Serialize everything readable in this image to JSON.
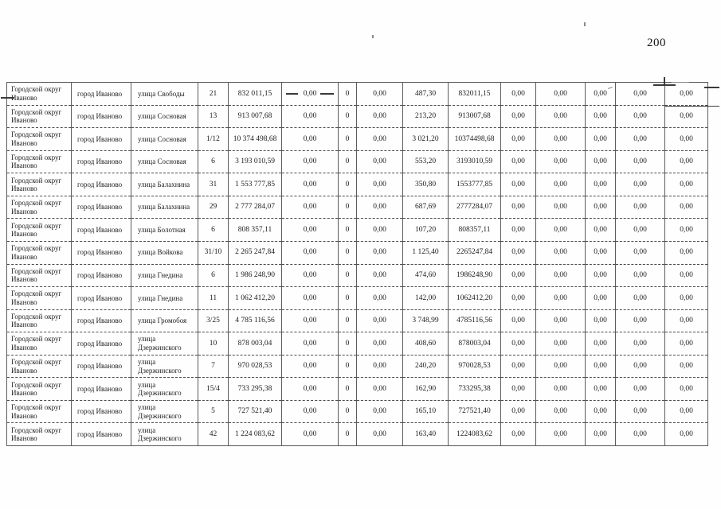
{
  "page": {
    "number": "200"
  },
  "colors": {
    "ink": "#1c1c1c",
    "border": "#5c5c5c",
    "paper": "#fefefe"
  },
  "table": {
    "rows": [
      [
        "Городской округ\nИваново",
        "город Иваново",
        "улица Свободы",
        "21",
        "832 011,15",
        "0,00",
        "0",
        "0,00",
        "487,30",
        "832011,15",
        "0,00",
        "0,00",
        "0,00",
        "0,00",
        "0,00"
      ],
      [
        "Городской округ\nИваново",
        "город Иваново",
        "улица Сосновая",
        "13",
        "913 007,68",
        "0,00",
        "0",
        "0,00",
        "213,20",
        "913007,68",
        "0,00",
        "0,00",
        "0,00",
        "0,00",
        "0,00"
      ],
      [
        "Городской округ\nИваново",
        "город Иваново",
        "улица Сосновая",
        "1/12",
        "10 374 498,68",
        "0,00",
        "0",
        "0,00",
        "3 021,20",
        "10374498,68",
        "0,00",
        "0,00",
        "0,00",
        "0,00",
        "0,00"
      ],
      [
        "Городской округ\nИваново",
        "город Иваново",
        "улица Сосновая",
        "6",
        "3 193 010,59",
        "0,00",
        "0",
        "0,00",
        "553,20",
        "3193010,59",
        "0,00",
        "0,00",
        "0,00",
        "0,00",
        "0,00"
      ],
      [
        "Городской округ\nИваново",
        "город Иваново",
        "улица Балахнина",
        "31",
        "1 553 777,85",
        "0,00",
        "0",
        "0,00",
        "350,80",
        "1553777,85",
        "0,00",
        "0,00",
        "0,00",
        "0,00",
        "0,00"
      ],
      [
        "Городской округ\nИваново",
        "город Иваново",
        "улица Балахнина",
        "29",
        "2 777 284,07",
        "0,00",
        "0",
        "0,00",
        "687,69",
        "2777284,07",
        "0,00",
        "0,00",
        "0,00",
        "0,00",
        "0,00"
      ],
      [
        "Городской округ\nИваново",
        "город Иваново",
        "улица Болотная",
        "6",
        "808 357,11",
        "0,00",
        "0",
        "0,00",
        "107,20",
        "808357,11",
        "0,00",
        "0,00",
        "0,00",
        "0,00",
        "0,00"
      ],
      [
        "Городской округ\nИваново",
        "город Иваново",
        "улица Войкова",
        "31/10",
        "2 265 247,84",
        "0,00",
        "0",
        "0,00",
        "1 125,40",
        "2265247,84",
        "0,00",
        "0,00",
        "0,00",
        "0,00",
        "0,00"
      ],
      [
        "Городской округ\nИваново",
        "город Иваново",
        "улица Гнедина",
        "6",
        "1 986 248,90",
        "0,00",
        "0",
        "0,00",
        "474,60",
        "1986248,90",
        "0,00",
        "0,00",
        "0,00",
        "0,00",
        "0,00"
      ],
      [
        "Городской округ\nИваново",
        "город Иваново",
        "улица Гнедина",
        "11",
        "1 062 412,20",
        "0,00",
        "0",
        "0,00",
        "142,00",
        "1062412,20",
        "0,00",
        "0,00",
        "0,00",
        "0,00",
        "0,00"
      ],
      [
        "Городской округ\nИваново",
        "город Иваново",
        "улица Громобоя",
        "3/25",
        "4 785 116,56",
        "0,00",
        "0",
        "0,00",
        "3 748,99",
        "4785116,56",
        "0,00",
        "0,00",
        "0,00",
        "0,00",
        "0,00"
      ],
      [
        "Городской округ\nИваново",
        "город Иваново",
        "улица\nДзержинского",
        "10",
        "878 003,04",
        "0,00",
        "0",
        "0,00",
        "408,60",
        "878003,04",
        "0,00",
        "0,00",
        "0,00",
        "0,00",
        "0,00"
      ],
      [
        "Городской округ\nИваново",
        "город Иваново",
        "улица\nДзержинского",
        "7",
        "970 028,53",
        "0,00",
        "0",
        "0,00",
        "240,20",
        "970028,53",
        "0,00",
        "0,00",
        "0,00",
        "0,00",
        "0,00"
      ],
      [
        "Городской округ\nИваново",
        "город Иваново",
        "улица\nДзержинского",
        "15/4",
        "733 295,38",
        "0,00",
        "0",
        "0,00",
        "162,90",
        "733295,38",
        "0,00",
        "0,00",
        "0,00",
        "0,00",
        "0,00"
      ],
      [
        "Городской округ\nИваново",
        "город Иваново",
        "улица\nДзержинского",
        "5",
        "727 521,40",
        "0,00",
        "0",
        "0,00",
        "165,10",
        "727521,40",
        "0,00",
        "0,00",
        "0,00",
        "0,00",
        "0,00"
      ],
      [
        "Городской округ\nИваново",
        "город Иваново",
        "улица\nДзержинского",
        "42",
        "1 224 083,62",
        "0,00",
        "0",
        "0,00",
        "163,40",
        "1224083,62",
        "0,00",
        "0,00",
        "0,00",
        "0,00",
        "0,00"
      ]
    ]
  }
}
